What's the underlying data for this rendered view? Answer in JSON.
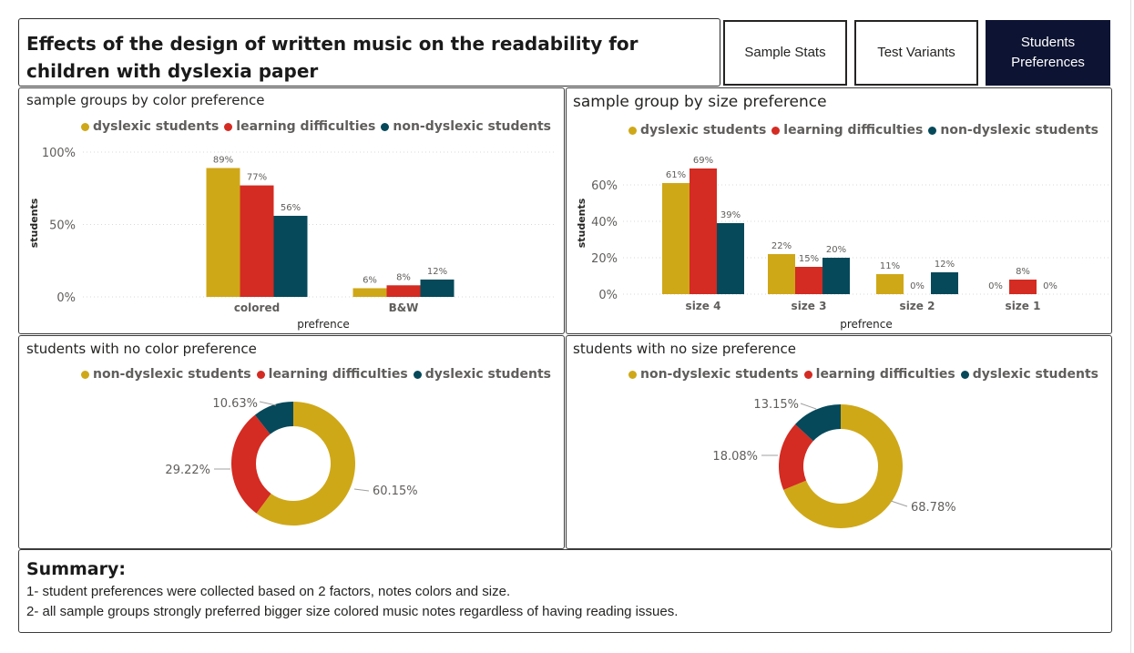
{
  "header": {
    "title": "Effects of the design of written music on the readability for children with dyslexia paper"
  },
  "nav": {
    "sample_stats": "Sample Stats",
    "test_variants": "Test Variants",
    "students_preferences": "Students Preferences"
  },
  "colors": {
    "dyslexic": "#cfa818",
    "learning": "#d42b22",
    "nondyslexic": "#05495a",
    "active_nav": "#0d1332"
  },
  "legends": {
    "dyslexic": "dyslexic students",
    "learning": "learning difficulties",
    "nondyslexic": "non-dyslexic students"
  },
  "chart_data": [
    {
      "type": "bar",
      "title": "sample groups by color preference",
      "xlabel": "prefrence",
      "ylabel": "students",
      "categories": [
        "colored",
        "B&W"
      ],
      "series": [
        {
          "name": "dyslexic students",
          "values": [
            89,
            6
          ]
        },
        {
          "name": "learning difficulties",
          "values": [
            77,
            8
          ]
        },
        {
          "name": "non-dyslexic students",
          "values": [
            56,
            12
          ]
        }
      ],
      "ylim": [
        0,
        100
      ],
      "yticks": [
        "0%",
        "50%",
        "100%"
      ],
      "data_labels": [
        [
          "89%",
          "6%"
        ],
        [
          "77%",
          "8%"
        ],
        [
          "56%",
          "12%"
        ]
      ],
      "legend": "top-center",
      "grid": true
    },
    {
      "type": "bar",
      "title": "sample group by size preference",
      "xlabel": "prefrence",
      "ylabel": "students",
      "categories": [
        "size 4",
        "size 3",
        "size 2",
        "size 1"
      ],
      "series": [
        {
          "name": "dyslexic students",
          "values": [
            61,
            22,
            11,
            0
          ]
        },
        {
          "name": "learning difficulties",
          "values": [
            69,
            15,
            0,
            8
          ]
        },
        {
          "name": "non-dyslexic students",
          "values": [
            39,
            20,
            12,
            0
          ]
        }
      ],
      "ylim": [
        0,
        70
      ],
      "yticks": [
        "0%",
        "20%",
        "40%",
        "60%"
      ],
      "data_labels": [
        [
          "61%",
          "22%",
          "11%",
          "0%"
        ],
        [
          "69%",
          "15%",
          "0%",
          "8%"
        ],
        [
          "39%",
          "20%",
          "12%",
          "0%"
        ]
      ],
      "legend": "top-center",
      "grid": true
    },
    {
      "type": "pie",
      "title": "students with no color preference",
      "categories": [
        "non-dyslexic students",
        "learning difficulties",
        "dyslexic students"
      ],
      "values": [
        60.15,
        29.22,
        10.63
      ],
      "data_labels": [
        "60.15%",
        "29.22%",
        "10.63%"
      ],
      "legend": "top-center"
    },
    {
      "type": "pie",
      "title": "students with no size preference",
      "categories": [
        "non-dyslexic students",
        "learning difficulties",
        "dyslexic students"
      ],
      "values": [
        68.78,
        18.08,
        13.15
      ],
      "data_labels": [
        "68.78%",
        "18.08%",
        "13.15%"
      ],
      "legend": "top-center"
    }
  ],
  "summary": {
    "title": "Summary:",
    "line1": "1- student preferences were collected based on 2 factors, notes colors and size.",
    "line2": "2- all sample groups strongly preferred bigger size colored music notes regardless of having reading issues."
  }
}
